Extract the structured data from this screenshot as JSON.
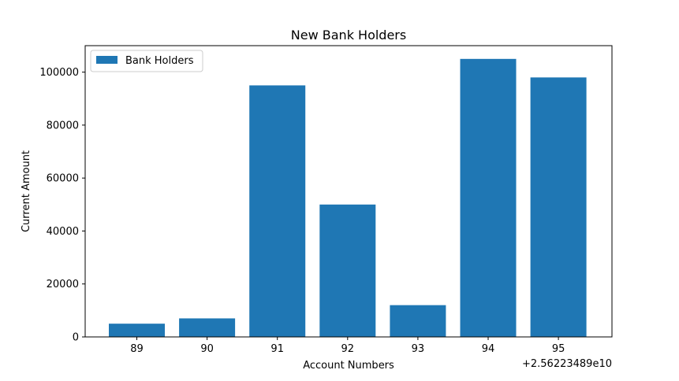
{
  "chart_data": {
    "type": "bar",
    "title": "New Bank Holders",
    "xlabel": "Account Numbers",
    "ylabel": "Current Amount",
    "x_offset_label": "+2.56223489e10",
    "categories": [
      "89",
      "90",
      "91",
      "92",
      "93",
      "94",
      "95"
    ],
    "series": [
      {
        "name": "Bank Holders",
        "values": [
          5000,
          7000,
          95000,
          50000,
          12000,
          105000,
          98000
        ],
        "color": "#1f77b4"
      }
    ],
    "yticks": [
      0,
      20000,
      40000,
      60000,
      80000,
      100000
    ],
    "ylim": [
      0,
      110000
    ],
    "grid": false,
    "legend_position": "top-left"
  }
}
